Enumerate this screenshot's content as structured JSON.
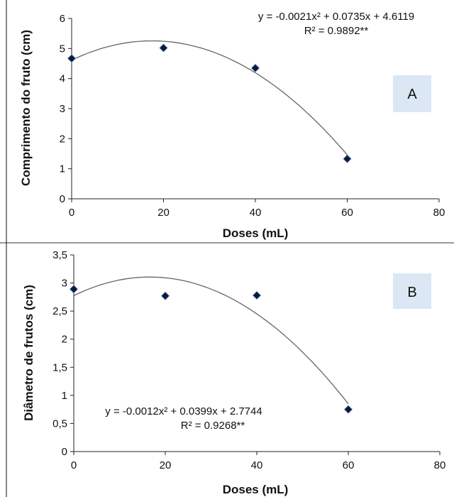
{
  "colors": {
    "background": "#ffffff",
    "marker": "#0a1a3a",
    "marker_edge": "#6a86b5",
    "fit_line": "#666666",
    "axis": "#222222",
    "panel_label_bg": "#dbe7f4",
    "border": "#333333"
  },
  "chart_data": [
    {
      "type": "scatter",
      "panel_label": "A",
      "xlabel": "Doses (mL)",
      "ylabel": "Comprimento do fruto (cm)",
      "xlim": [
        0,
        80
      ],
      "ylim": [
        0,
        6
      ],
      "x_ticks": [
        "0",
        "20",
        "40",
        "60",
        "80"
      ],
      "y_ticks": [
        "0",
        "1",
        "2",
        "3",
        "4",
        "5",
        "6"
      ],
      "x": [
        0,
        20,
        40,
        60
      ],
      "y": [
        4.67,
        5.02,
        4.35,
        1.33
      ],
      "fit": {
        "a": -0.0021,
        "b": 0.0735,
        "c": 4.6119,
        "x_range": [
          0,
          60
        ]
      },
      "equation": "y = -0.0021x² + 0.0735x + 4.6119",
      "r2": "R² = 0.9892**",
      "grid": false
    },
    {
      "type": "scatter",
      "panel_label": "B",
      "xlabel": "Doses (mL)",
      "ylabel": "Diâmetro de frutos (cm)",
      "xlim": [
        0,
        80
      ],
      "ylim": [
        0,
        3.5
      ],
      "x_ticks": [
        "0",
        "20",
        "40",
        "60",
        "80"
      ],
      "y_ticks": [
        "0",
        "0,5",
        "1",
        "1,5",
        "2",
        "2,5",
        "3",
        "3,5"
      ],
      "x": [
        0,
        20,
        40,
        60
      ],
      "y": [
        2.89,
        2.77,
        2.78,
        0.75
      ],
      "fit": {
        "a": -0.0012,
        "b": 0.0399,
        "c": 2.7744,
        "x_range": [
          0,
          60
        ]
      },
      "equation": "y = -0.0012x² + 0.0399x + 2.7744",
      "r2": "R² = 0.9268**",
      "grid": false
    }
  ]
}
